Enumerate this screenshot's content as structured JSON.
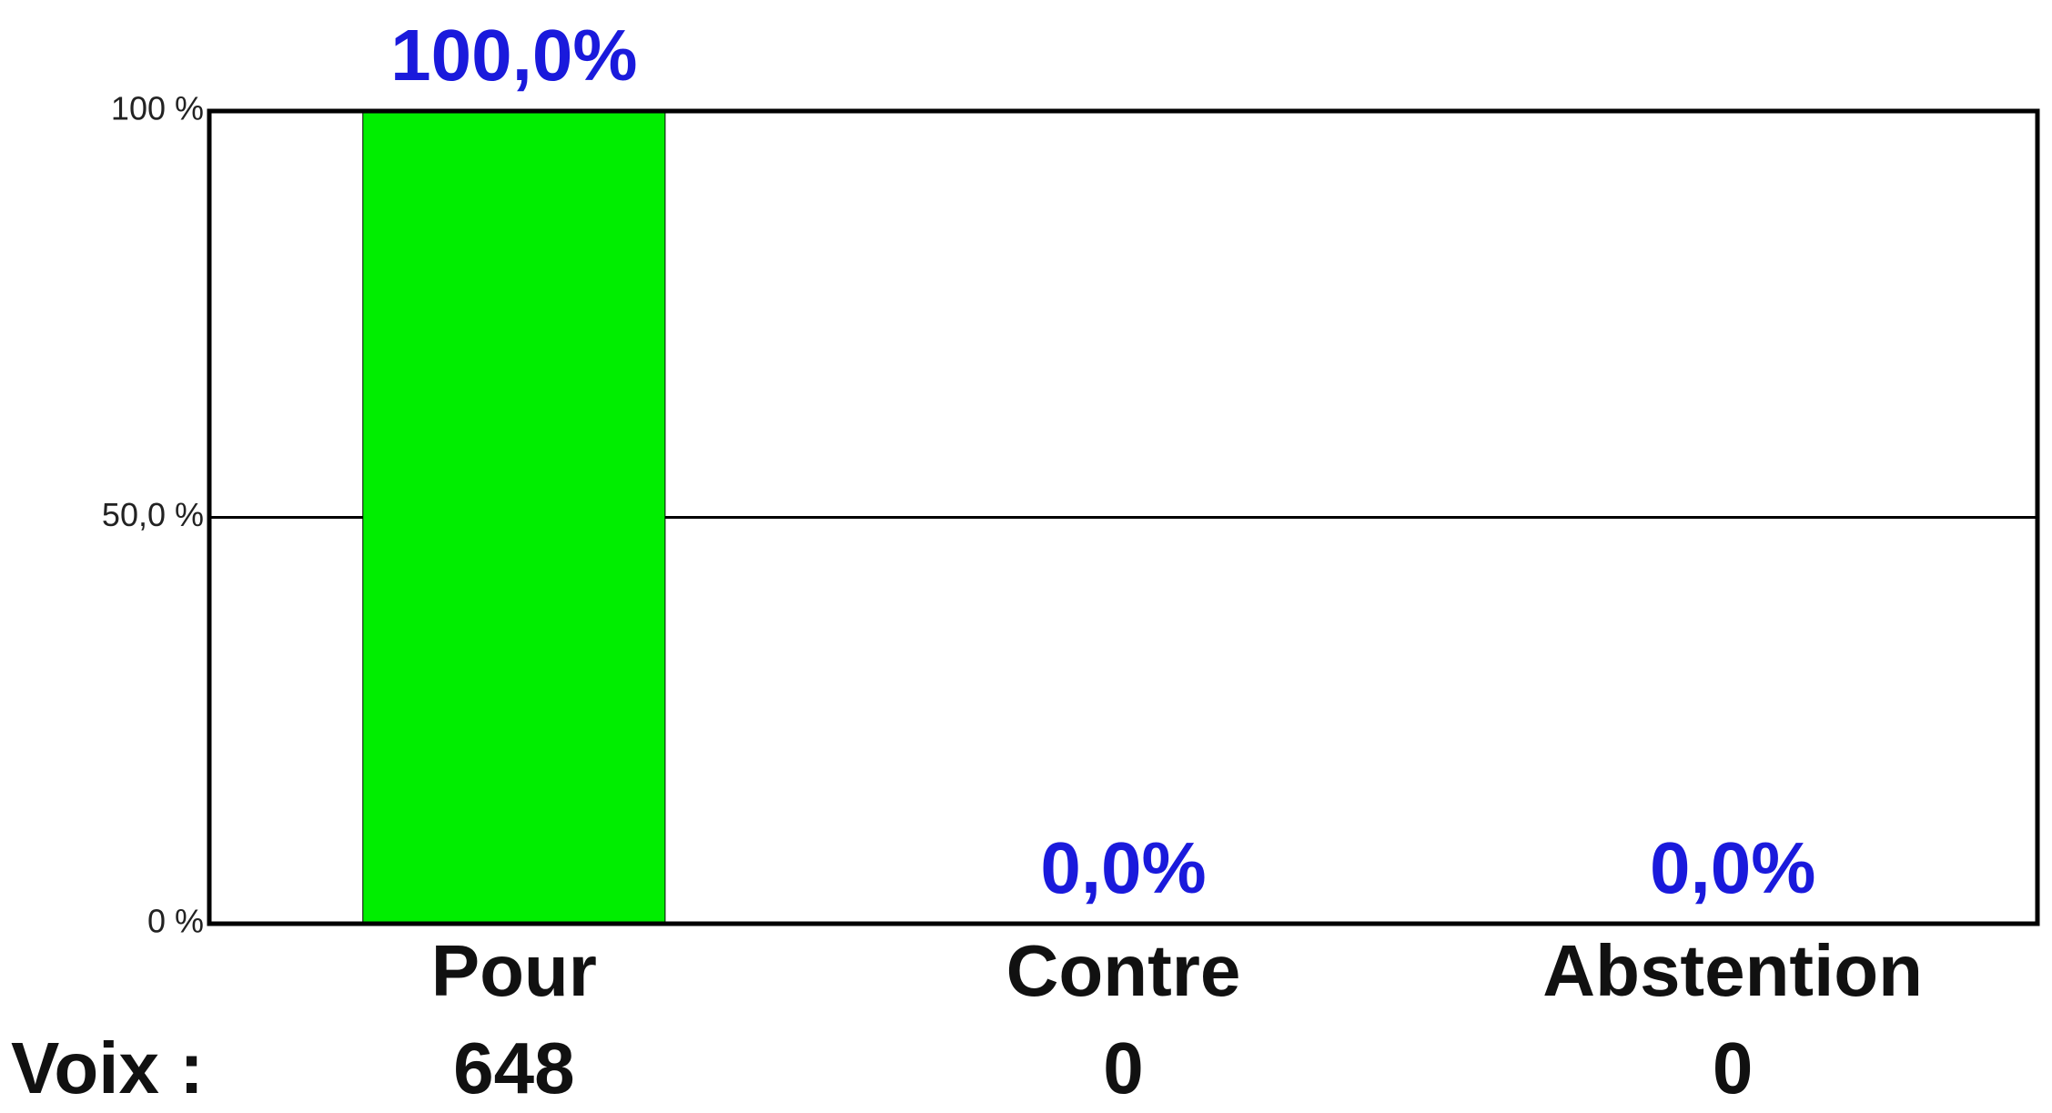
{
  "chart_data": {
    "type": "bar",
    "categories": [
      "Pour",
      "Contre",
      "Abstention"
    ],
    "values": [
      100,
      0,
      0
    ],
    "value_labels": [
      "100,0%",
      "0,0%",
      "0,0%"
    ],
    "color": "#00ee00",
    "ylim": [
      0,
      100
    ],
    "yticks": [
      {
        "value": 0,
        "label": "0 %"
      },
      {
        "value": 50,
        "label": "50,0 %"
      },
      {
        "value": 100,
        "label": "100 %"
      }
    ],
    "grid": true,
    "votes_label": "Voix :",
    "votes": [
      648,
      0,
      0
    ]
  }
}
